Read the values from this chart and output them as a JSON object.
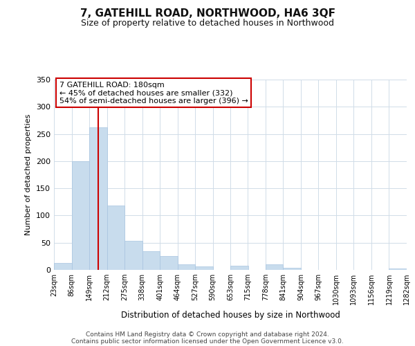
{
  "title": "7, GATEHILL ROAD, NORTHWOOD, HA6 3QF",
  "subtitle": "Size of property relative to detached houses in Northwood",
  "xlabel": "Distribution of detached houses by size in Northwood",
  "ylabel": "Number of detached properties",
  "bar_color": "#c8dced",
  "bar_edge_color": "#a8c4e0",
  "background_color": "#ffffff",
  "grid_color": "#d0dce8",
  "bins": [
    23,
    86,
    149,
    212,
    275,
    338,
    401,
    464,
    527,
    590,
    653,
    715,
    778,
    841,
    904,
    967,
    1030,
    1093,
    1156,
    1219,
    1282
  ],
  "values": [
    13,
    200,
    262,
    118,
    54,
    35,
    25,
    10,
    7,
    0,
    8,
    0,
    10,
    4,
    0,
    0,
    0,
    0,
    0,
    3
  ],
  "tick_labels": [
    "23sqm",
    "86sqm",
    "149sqm",
    "212sqm",
    "275sqm",
    "338sqm",
    "401sqm",
    "464sqm",
    "527sqm",
    "590sqm",
    "653sqm",
    "715sqm",
    "778sqm",
    "841sqm",
    "904sqm",
    "967sqm",
    "1030sqm",
    "1093sqm",
    "1156sqm",
    "1219sqm",
    "1282sqm"
  ],
  "ylim": [
    0,
    350
  ],
  "yticks": [
    0,
    50,
    100,
    150,
    200,
    250,
    300,
    350
  ],
  "vline_x": 180,
  "vline_color": "#cc0000",
  "annotation_line1": "7 GATEHILL ROAD: 180sqm",
  "annotation_line2": "← 45% of detached houses are smaller (332)",
  "annotation_line3": "54% of semi-detached houses are larger (396) →",
  "annotation_box_color": "#ffffff",
  "annotation_box_edge": "#cc0000",
  "footer1": "Contains HM Land Registry data © Crown copyright and database right 2024.",
  "footer2": "Contains public sector information licensed under the Open Government Licence v3.0."
}
